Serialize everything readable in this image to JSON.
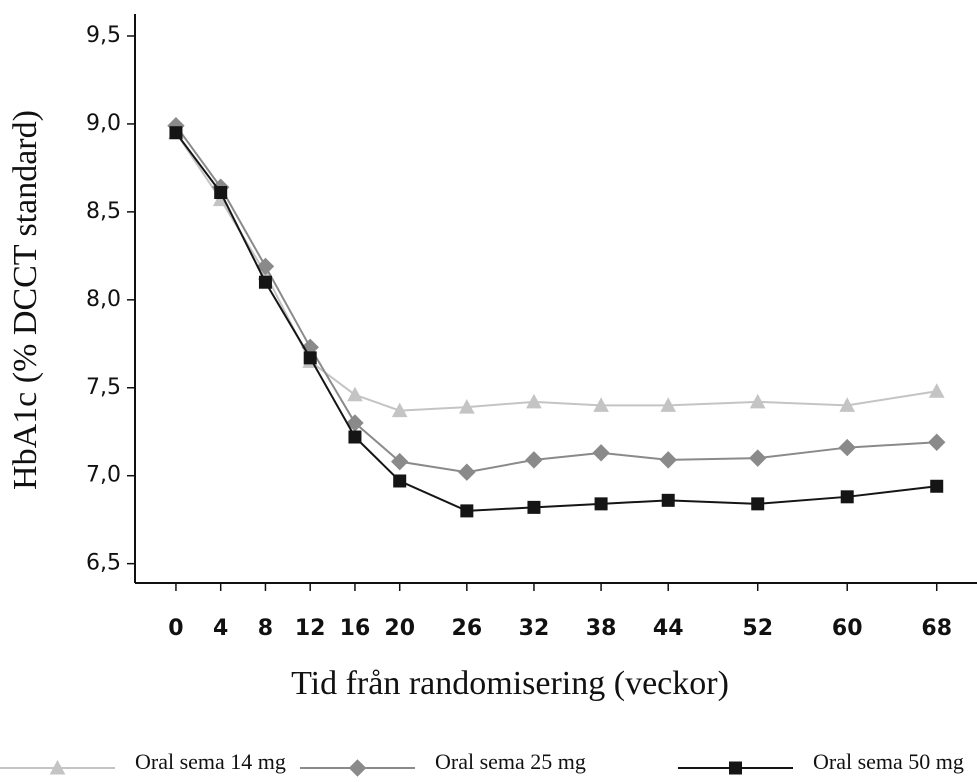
{
  "chart_data": {
    "type": "line",
    "x_label": "Tid från randomisering (veckor)",
    "y_label": "HbA1c (% DCCT standard)",
    "x": [
      0,
      4,
      8,
      12,
      16,
      20,
      26,
      32,
      38,
      44,
      52,
      60,
      68
    ],
    "xlim": [
      -3.66,
      71.6
    ],
    "xticks": [
      0,
      4,
      8,
      12,
      16,
      20,
      26,
      32,
      38,
      44,
      52,
      60,
      68
    ],
    "ylim": [
      6.39,
      9.625
    ],
    "yticks": [
      {
        "value": 6.5,
        "label": "6,5"
      },
      {
        "value": 7.0,
        "label": "7,0"
      },
      {
        "value": 7.5,
        "label": "7,5"
      },
      {
        "value": 8.0,
        "label": "8,0"
      },
      {
        "value": 8.5,
        "label": "8,5"
      },
      {
        "value": 9.0,
        "label": "9,0"
      },
      {
        "value": 9.5,
        "label": "9,5"
      }
    ],
    "grid": false,
    "legend": "bottom",
    "series": [
      {
        "name": "Oral sema 14 mg",
        "color": "#c4c4c4",
        "marker": "triangle",
        "values": [
          8.95,
          8.57,
          8.15,
          7.65,
          7.46,
          7.37,
          7.39,
          7.42,
          7.4,
          7.4,
          7.42,
          7.4,
          7.48
        ]
      },
      {
        "name": "Oral sema 25 mg",
        "color": "#8a8a8a",
        "marker": "diamond",
        "values": [
          8.99,
          8.64,
          8.19,
          7.73,
          7.3,
          7.08,
          7.02,
          7.09,
          7.13,
          7.09,
          7.1,
          7.16,
          7.19
        ]
      },
      {
        "name": "Oral sema 50 mg",
        "color": "#151515",
        "marker": "square",
        "values": [
          8.95,
          8.61,
          8.1,
          7.67,
          7.22,
          6.97,
          6.8,
          6.82,
          6.84,
          6.86,
          6.84,
          6.88,
          6.94
        ]
      }
    ]
  }
}
